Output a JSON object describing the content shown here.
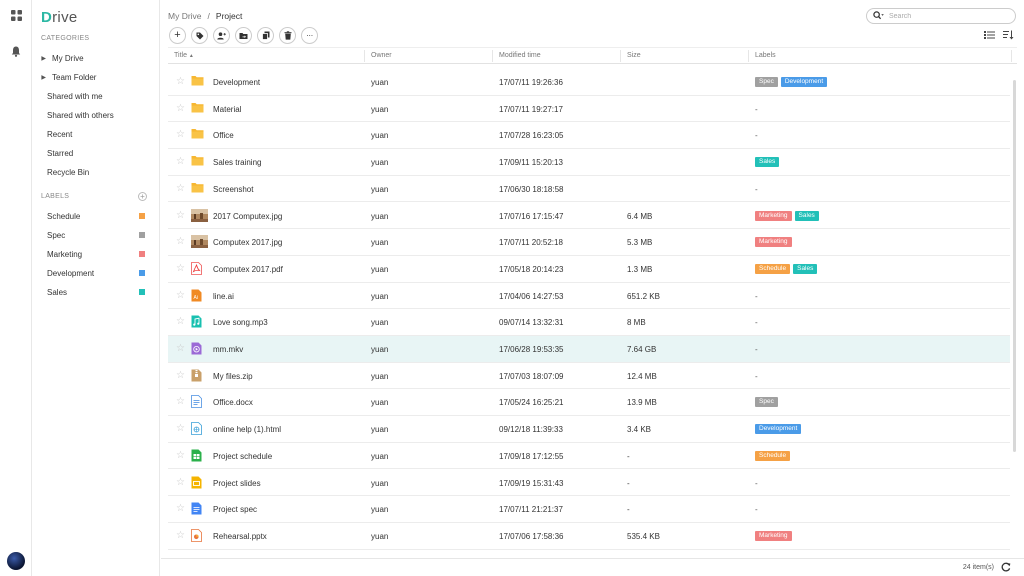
{
  "app": {
    "logo_first": "D",
    "logo_rest": "rive"
  },
  "sidebar": {
    "categories_heading": "CATEGORIES",
    "items": [
      {
        "label": "My Drive",
        "expandable": true
      },
      {
        "label": "Team Folder",
        "expandable": true
      },
      {
        "label": "Shared with me",
        "expandable": false
      },
      {
        "label": "Shared with others",
        "expandable": false
      },
      {
        "label": "Recent",
        "expandable": false
      },
      {
        "label": "Starred",
        "expandable": false
      },
      {
        "label": "Recycle Bin",
        "expandable": false
      }
    ],
    "labels_heading": "LABELS",
    "labels": [
      {
        "label": "Schedule",
        "color": "#f5a145"
      },
      {
        "label": "Spec",
        "color": "#a0a0a0"
      },
      {
        "label": "Marketing",
        "color": "#f08080"
      },
      {
        "label": "Development",
        "color": "#4a9be8"
      },
      {
        "label": "Sales",
        "color": "#22c0b8"
      }
    ]
  },
  "breadcrumb": {
    "root": "My Drive",
    "sep": "/",
    "current": "Project"
  },
  "search": {
    "placeholder": "Search"
  },
  "table": {
    "columns": {
      "title": "Title",
      "title_sort": "▲",
      "owner": "Owner",
      "modified": "Modified time",
      "size": "Size",
      "labels": "Labels"
    },
    "rows": [
      {
        "name": "Development",
        "icon": "folder-icon",
        "owner": "yuan",
        "modified": "17/07/11 19:26:36",
        "size": "",
        "labels": [
          "Spec",
          "Development"
        ],
        "no_label": ""
      },
      {
        "name": "Material",
        "icon": "folder-icon",
        "owner": "yuan",
        "modified": "17/07/11 19:27:17",
        "size": "",
        "labels": [],
        "no_label": "-"
      },
      {
        "name": "Office",
        "icon": "folder-icon",
        "owner": "yuan",
        "modified": "17/07/28 16:23:05",
        "size": "",
        "labels": [],
        "no_label": "-"
      },
      {
        "name": "Sales training",
        "icon": "folder-icon",
        "owner": "yuan",
        "modified": "17/09/11 15:20:13",
        "size": "",
        "labels": [
          "Sales"
        ],
        "no_label": ""
      },
      {
        "name": "Screenshot",
        "icon": "folder-icon",
        "owner": "yuan",
        "modified": "17/06/30 18:18:58",
        "size": "",
        "labels": [],
        "no_label": "-"
      },
      {
        "name": "2017 Computex.jpg",
        "icon": "image-thumbnail-icon",
        "owner": "yuan",
        "modified": "17/07/16 17:15:47",
        "size": "6.4 MB",
        "labels": [
          "Marketing",
          "Sales"
        ],
        "no_label": ""
      },
      {
        "name": "Computex 2017.jpg",
        "icon": "image-thumbnail-icon",
        "owner": "yuan",
        "modified": "17/07/11 20:52:18",
        "size": "5.3 MB",
        "labels": [
          "Marketing"
        ],
        "no_label": ""
      },
      {
        "name": "Computex 2017.pdf",
        "icon": "pdf-file-icon",
        "owner": "yuan",
        "modified": "17/05/18 20:14:23",
        "size": "1.3 MB",
        "labels": [
          "Schedule",
          "Sales"
        ],
        "no_label": ""
      },
      {
        "name": "line.ai",
        "icon": "ai-file-icon",
        "owner": "yuan",
        "modified": "17/04/06 14:27:53",
        "size": "651.2 KB",
        "labels": [],
        "no_label": "-"
      },
      {
        "name": "Love song.mp3",
        "icon": "audio-file-icon",
        "owner": "yuan",
        "modified": "09/07/14 13:32:31",
        "size": "8 MB",
        "labels": [],
        "no_label": "-"
      },
      {
        "name": "mm.mkv",
        "icon": "video-file-icon",
        "owner": "yuan",
        "modified": "17/06/28 19:53:35",
        "size": "7.64 GB",
        "labels": [],
        "no_label": "-",
        "selected": true
      },
      {
        "name": "My files.zip",
        "icon": "zip-file-icon",
        "owner": "yuan",
        "modified": "17/07/03 18:07:09",
        "size": "12.4 MB",
        "labels": [],
        "no_label": "-"
      },
      {
        "name": "Office.docx",
        "icon": "doc-file-icon",
        "owner": "yuan",
        "modified": "17/05/24 16:25:21",
        "size": "13.9 MB",
        "labels": [
          "Spec"
        ],
        "no_label": ""
      },
      {
        "name": "online help (1).html",
        "icon": "html-file-icon",
        "owner": "yuan",
        "modified": "09/12/18 11:39:33",
        "size": "3.4 KB",
        "labels": [
          "Development"
        ],
        "no_label": ""
      },
      {
        "name": "Project schedule",
        "icon": "spreadsheet-icon",
        "owner": "yuan",
        "modified": "17/09/18 17:12:55",
        "size": "-",
        "labels": [
          "Schedule"
        ],
        "no_label": ""
      },
      {
        "name": "Project slides",
        "icon": "slides-icon",
        "owner": "yuan",
        "modified": "17/09/19 15:31:43",
        "size": "-",
        "labels": [],
        "no_label": "-"
      },
      {
        "name": "Project spec",
        "icon": "document-icon",
        "owner": "yuan",
        "modified": "17/07/11 21:21:37",
        "size": "-",
        "labels": [],
        "no_label": "-"
      },
      {
        "name": "Rehearsal.pptx",
        "icon": "pptx-file-icon",
        "owner": "yuan",
        "modified": "17/07/06 17:58:36",
        "size": "535.4 KB",
        "labels": [
          "Marketing"
        ],
        "no_label": ""
      }
    ]
  },
  "footer": {
    "count": "24 item(s)"
  },
  "colors": {
    "accent": "#2cb8a4",
    "folder": "#f7b731",
    "selected_row": "#e8f5f5"
  }
}
